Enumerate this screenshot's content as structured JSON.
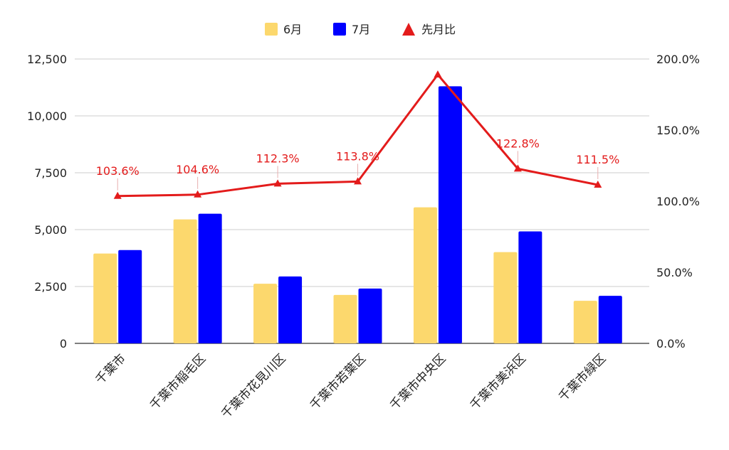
{
  "chart_data": {
    "type": "bar",
    "categories": [
      "千葉市",
      "千葉市稲毛区",
      "千葉市花見川区",
      "千葉市若葉区",
      "千葉市中央区",
      "千葉市美浜区",
      "千葉市緑区"
    ],
    "series": [
      {
        "name": "6月",
        "type": "bar",
        "axis": "left",
        "color": "#fcd86d",
        "values": [
          3950,
          5450,
          2620,
          2130,
          5980,
          4010,
          1870
        ]
      },
      {
        "name": "7月",
        "type": "bar",
        "axis": "left",
        "color": "#0000ff",
        "values": [
          4100,
          5700,
          2940,
          2410,
          11300,
          4920,
          2090
        ]
      },
      {
        "name": "先月比",
        "type": "line",
        "axis": "right",
        "color": "#e31b1b",
        "marker": "triangle",
        "values": [
          103.6,
          104.6,
          112.3,
          113.8,
          189.0,
          122.8,
          111.5
        ],
        "labels": [
          "103.6%",
          "104.6%",
          "112.3%",
          "113.8%",
          "",
          "122.8%",
          "111.5%"
        ]
      }
    ],
    "y_left": {
      "ylim": [
        0,
        12500
      ],
      "ticks": [
        "0",
        "2,500",
        "5,000",
        "7,500",
        "10,000",
        "12,500"
      ],
      "tick_values": [
        0,
        2500,
        5000,
        7500,
        10000,
        12500
      ]
    },
    "y_right": {
      "ylim": [
        0,
        200
      ],
      "ticks": [
        "0.0%",
        "50.0%",
        "100.0%",
        "150.0%",
        "200.0%"
      ],
      "tick_values": [
        0,
        50,
        100,
        150,
        200
      ]
    },
    "grid": true,
    "legend_position": "top-center",
    "title": "",
    "xlabel": "",
    "ylabel": ""
  }
}
